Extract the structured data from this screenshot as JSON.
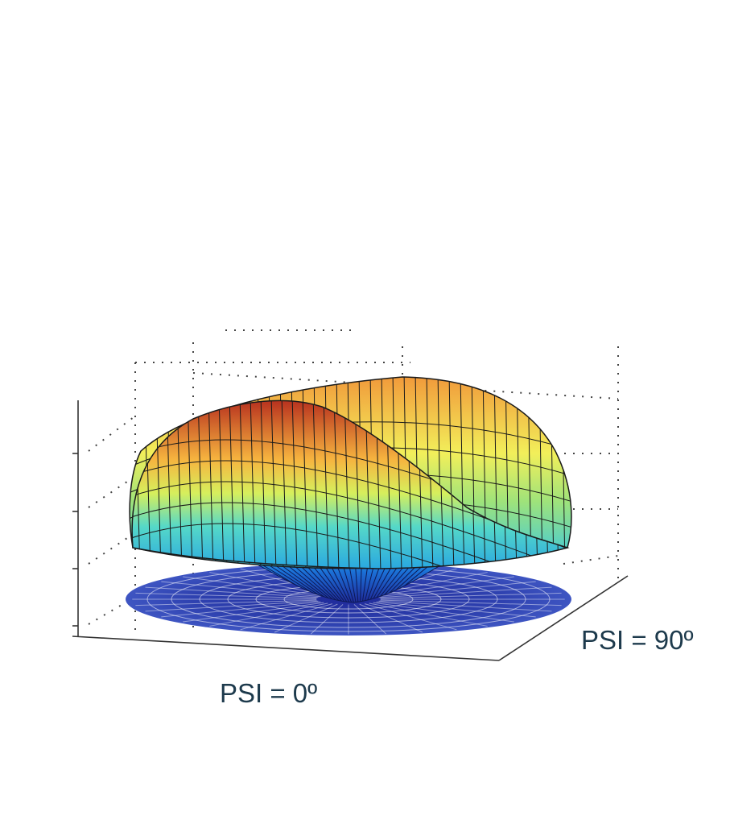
{
  "chart_data": {
    "type": "surface3d",
    "title": "",
    "xlabel": "PSI = 0º",
    "ylabel": "PSI = 90º",
    "zlabel": "",
    "axis_tick_labels": false,
    "grid": true,
    "colormap": "jet",
    "colormap_stops": [
      "#1f2a9a",
      "#1b6fd6",
      "#33c6e8",
      "#7fe08f",
      "#f2ef5a",
      "#f6a23c",
      "#c0392b"
    ],
    "base_contour_color": "#3a4fb8",
    "surface": {
      "description_from_figure": "pole-figure style surface over a circular base; two saddle lobes peaking near PSI = 0º side (left) and PSI = 90º side (back), with a narrow stem at the center",
      "z_ticks_count": 4
    }
  }
}
